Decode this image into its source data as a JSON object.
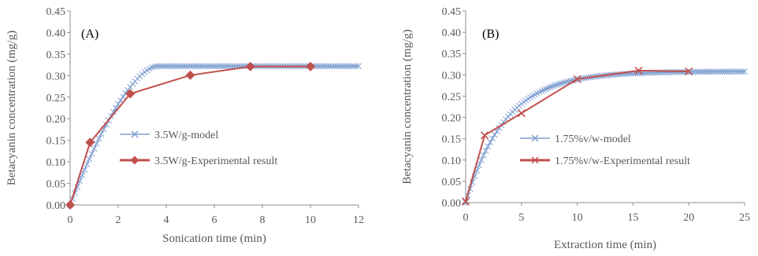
{
  "chart_data": [
    {
      "type": "line",
      "panel_label": "(A)",
      "xlabel": "Sonication time (min)",
      "ylabel": "Betacyanin concentration (mg/g)",
      "xlim": [
        0,
        12
      ],
      "ylim": [
        0,
        0.45
      ],
      "xticks": [
        "0",
        "2",
        "4",
        "6",
        "8",
        "10",
        "12"
      ],
      "yticks": [
        "0.00",
        "0.05",
        "0.10",
        "0.15",
        "0.20",
        "0.25",
        "0.30",
        "0.35",
        "0.40",
        "0.45"
      ],
      "grid": false,
      "legend_position": "center-right",
      "series": [
        {
          "name": "3.5W/g-model",
          "marker": "x",
          "color": "#7f9fd1",
          "model": {
            "kind": "saturating-linear",
            "plateau": 0.322,
            "knee_x": 3.6,
            "step": 0.1
          }
        },
        {
          "name": "3.5W/g-Experimental result",
          "marker": "diamond",
          "color": "#c0504d",
          "x": [
            0,
            0.83,
            2.5,
            5,
            7.5,
            10
          ],
          "y": [
            0.0,
            0.145,
            0.258,
            0.301,
            0.321,
            0.321
          ]
        }
      ]
    },
    {
      "type": "line",
      "panel_label": "(B)",
      "xlabel": "Extraction time (min)",
      "ylabel": "Betacyanin concentration (mg/g)",
      "xlim": [
        0,
        25
      ],
      "ylim": [
        0,
        0.45
      ],
      "xticks": [
        "0",
        "5",
        "10",
        "15",
        "20",
        "25"
      ],
      "yticks": [
        "0.00",
        "0.05",
        "0.10",
        "0.15",
        "0.20",
        "0.25",
        "0.30",
        "0.35",
        "0.40",
        "0.45"
      ],
      "grid": false,
      "legend_position": "center-right",
      "series": [
        {
          "name": "1.75%v/w-model",
          "marker": "x",
          "color": "#7f9fd1",
          "model": {
            "kind": "exponential-rise",
            "plateau": 0.308,
            "rate": 0.28,
            "step": 0.2
          }
        },
        {
          "name": "1.75%v/w-Experimental result",
          "marker": "x",
          "color": "#c0504d",
          "x": [
            0,
            1.7,
            5,
            10,
            15.5,
            20
          ],
          "y": [
            0.003,
            0.158,
            0.21,
            0.29,
            0.31,
            0.308
          ]
        }
      ]
    }
  ]
}
